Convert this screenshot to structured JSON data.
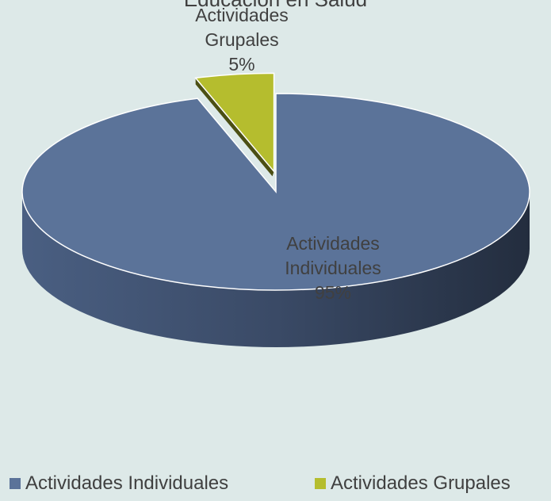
{
  "chart_data": {
    "type": "pie",
    "title": "Educación en Salud",
    "categories": [
      "Actividades Individuales",
      "Actividades Grupales"
    ],
    "values": [
      95,
      5
    ],
    "value_labels": [
      "95%",
      "5%"
    ],
    "colors": [
      "#5b7399",
      "#b5bd2e"
    ]
  }
}
